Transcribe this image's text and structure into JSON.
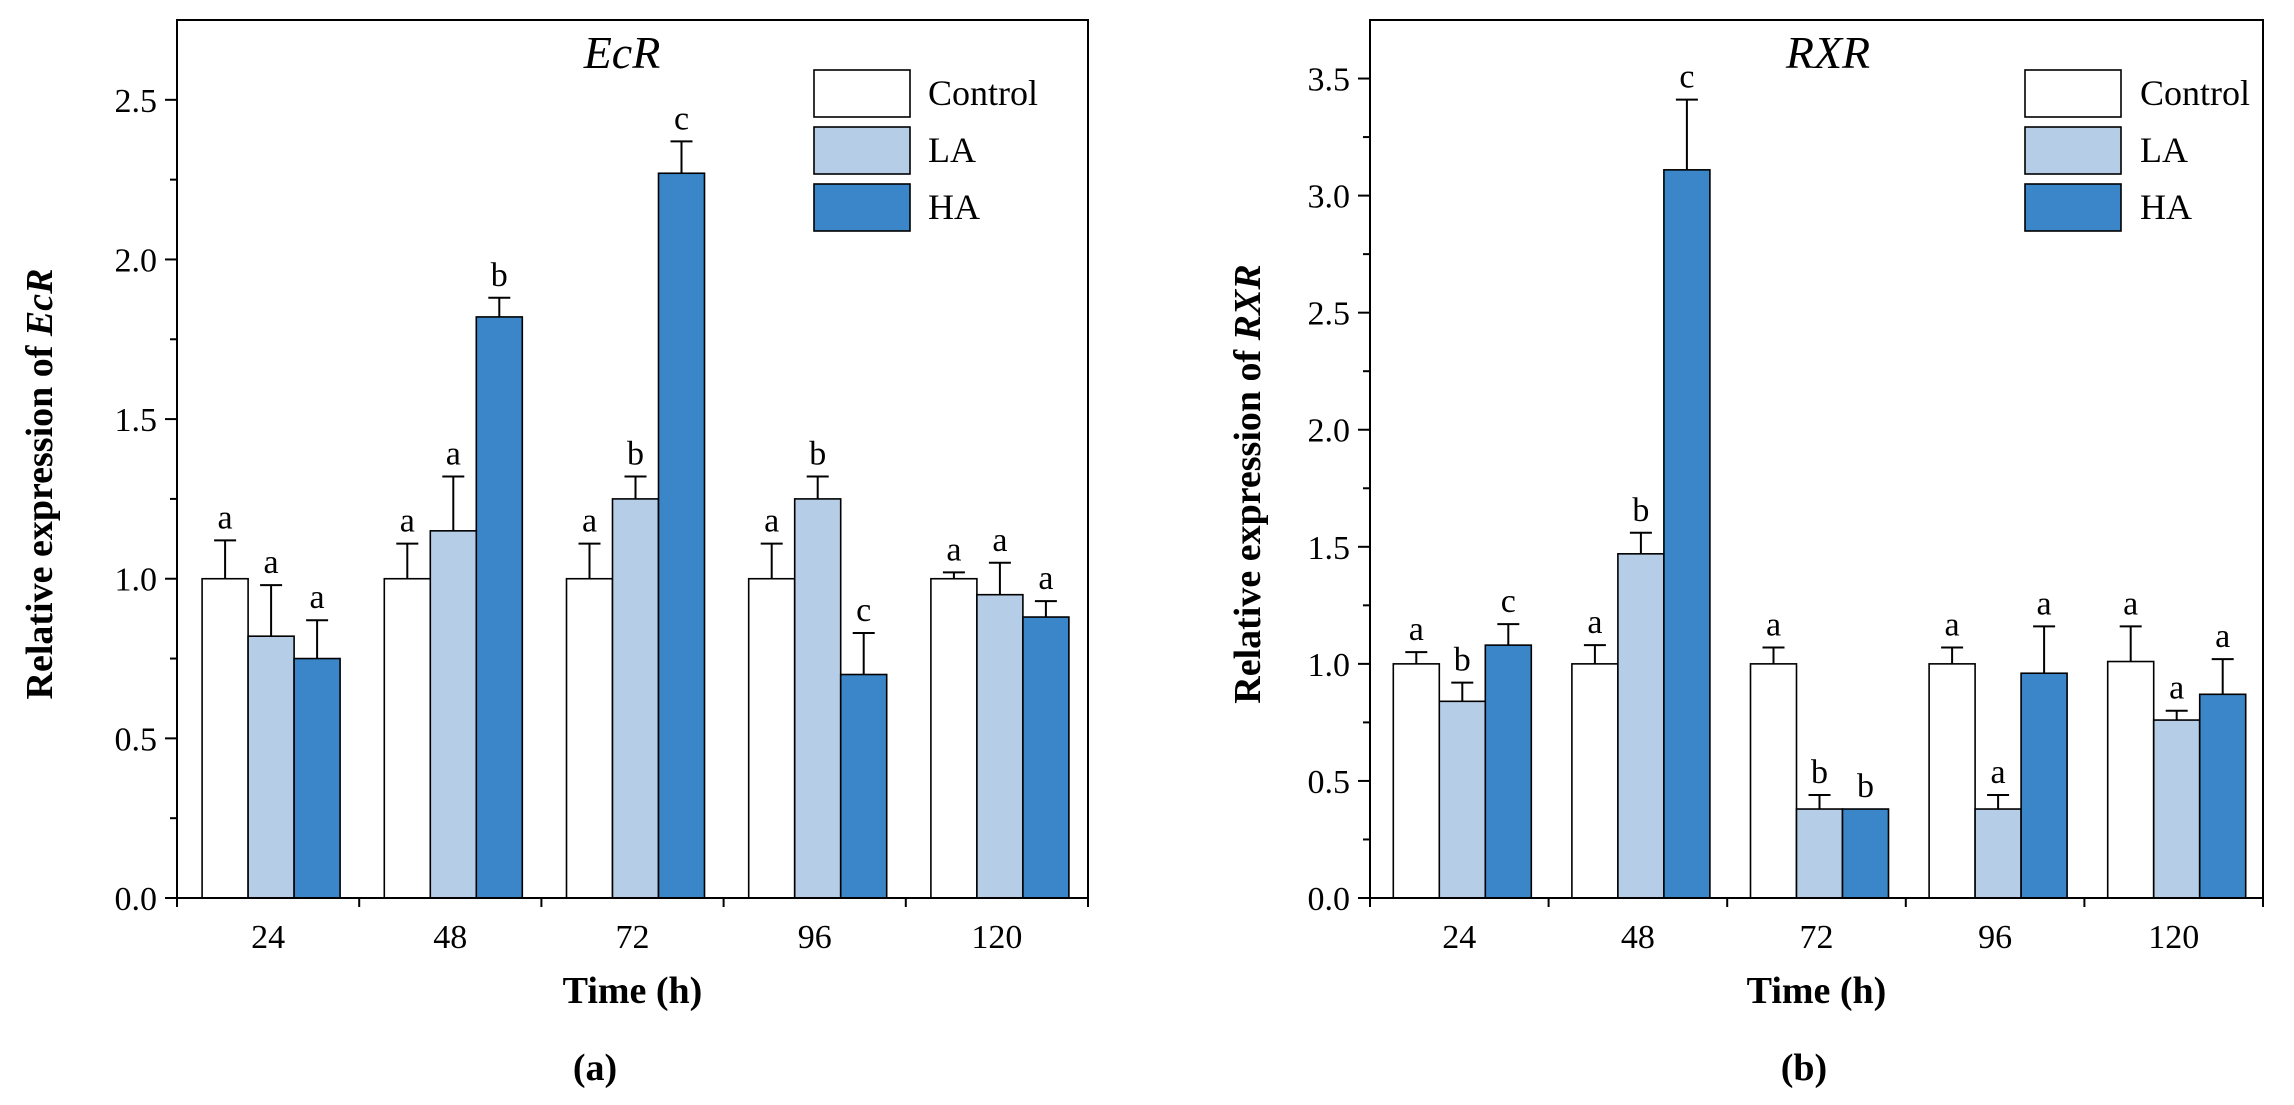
{
  "colors": {
    "Control": "#ffffff",
    "LA": "#b6cde8",
    "HA": "#3a86c8",
    "axis": "#000000"
  },
  "chart_data": [
    {
      "type": "bar",
      "title": "EcR",
      "xlabel": "Time (h)",
      "ylabel_prefix": "Relative expression of ",
      "ylabel_gene": "EcR",
      "panel_label": "(a)",
      "legend_position": "top-right",
      "categories": [
        "24",
        "48",
        "72",
        "96",
        "120"
      ],
      "ylim": [
        0,
        2.75
      ],
      "yticks": [
        0.0,
        0.5,
        1.0,
        1.5,
        2.0,
        2.5
      ],
      "ytick_labels": [
        "0.0",
        "0.5",
        "1.0",
        "1.5",
        "2.0",
        "2.5"
      ],
      "series": [
        {
          "name": "Control",
          "values": [
            1.0,
            1.0,
            1.0,
            1.0,
            1.0
          ],
          "errors": [
            0.12,
            0.11,
            0.11,
            0.11,
            0.02
          ],
          "labels": [
            "a",
            "a",
            "a",
            "a",
            "a"
          ]
        },
        {
          "name": "LA",
          "values": [
            0.82,
            1.15,
            1.25,
            1.25,
            0.95
          ],
          "errors": [
            0.16,
            0.17,
            0.07,
            0.07,
            0.1
          ],
          "labels": [
            "a",
            "a",
            "b",
            "b",
            "a"
          ]
        },
        {
          "name": "HA",
          "values": [
            0.75,
            1.82,
            2.27,
            0.7,
            0.88
          ],
          "errors": [
            0.12,
            0.06,
            0.1,
            0.13,
            0.05
          ],
          "labels": [
            "a",
            "b",
            "c",
            "c",
            "a"
          ]
        }
      ]
    },
    {
      "type": "bar",
      "title": "RXR",
      "xlabel": "Time (h)",
      "ylabel_prefix": "Relative expression of ",
      "ylabel_gene": "RXR",
      "panel_label": "(b)",
      "legend_position": "top-right",
      "categories": [
        "24",
        "48",
        "72",
        "96",
        "120"
      ],
      "ylim": [
        0,
        3.75
      ],
      "yticks": [
        0.0,
        0.5,
        1.0,
        1.5,
        2.0,
        2.5,
        3.0,
        3.5
      ],
      "ytick_labels": [
        "0.0",
        "0.5",
        "1.0",
        "1.5",
        "2.0",
        "2.5",
        "3.0",
        "3.5"
      ],
      "series": [
        {
          "name": "Control",
          "values": [
            1.0,
            1.0,
            1.0,
            1.0,
            1.01
          ],
          "errors": [
            0.05,
            0.08,
            0.07,
            0.07,
            0.15
          ],
          "labels": [
            "a",
            "a",
            "a",
            "a",
            "a"
          ]
        },
        {
          "name": "LA",
          "values": [
            0.84,
            1.47,
            0.38,
            0.38,
            0.76
          ],
          "errors": [
            0.08,
            0.09,
            0.06,
            0.06,
            0.04
          ],
          "labels": [
            "b",
            "b",
            "b",
            "a",
            "a"
          ]
        },
        {
          "name": "HA",
          "values": [
            1.08,
            3.11,
            0.38,
            0.96,
            0.87
          ],
          "errors": [
            0.09,
            0.3,
            0.0,
            0.2,
            0.15
          ],
          "labels": [
            "c",
            "c",
            "b",
            "a",
            "a"
          ]
        }
      ]
    }
  ]
}
